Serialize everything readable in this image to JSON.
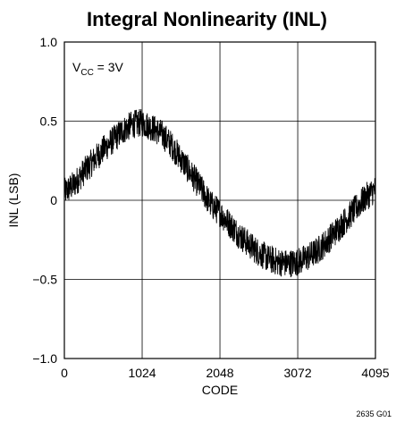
{
  "chart_data": {
    "type": "line",
    "title": "Integral Nonlinearity (INL)",
    "xlabel": "CODE",
    "ylabel": "INL (LSB)",
    "xlim": [
      0,
      4095
    ],
    "ylim": [
      -1.0,
      1.0
    ],
    "x_ticks": [
      0,
      1024,
      2048,
      3072,
      4095
    ],
    "x_tick_labels": [
      "0",
      "1024",
      "2048",
      "3072",
      "4095"
    ],
    "y_ticks": [
      1.0,
      0.5,
      0,
      -0.5,
      -1.0
    ],
    "y_tick_labels": [
      "1.0",
      "0.5",
      "0",
      "−0.5",
      "−1.0"
    ],
    "grid": true,
    "annotation": {
      "main": "V",
      "subscript": "CC",
      "rest": " = 3V"
    },
    "series": [
      {
        "x": [
          0,
          128,
          256,
          384,
          512,
          640,
          768,
          896,
          1024,
          1152,
          1280,
          1408,
          1536,
          1664,
          1792,
          1920,
          2048,
          2176,
          2304,
          2432,
          2560,
          2688,
          2816,
          2944,
          3072,
          3200,
          3328,
          3456,
          3584,
          3712,
          3840,
          3968,
          4095
        ],
        "values": [
          0.05,
          0.1,
          0.18,
          0.25,
          0.32,
          0.38,
          0.44,
          0.48,
          0.49,
          0.46,
          0.42,
          0.35,
          0.26,
          0.17,
          0.08,
          -0.02,
          -0.08,
          -0.15,
          -0.22,
          -0.28,
          -0.33,
          -0.37,
          -0.39,
          -0.4,
          -0.39,
          -0.36,
          -0.32,
          -0.26,
          -0.19,
          -0.12,
          -0.05,
          0.02,
          0.07
        ],
        "noise_amplitude": 0.09
      }
    ],
    "figure_id": "2635 G01"
  }
}
